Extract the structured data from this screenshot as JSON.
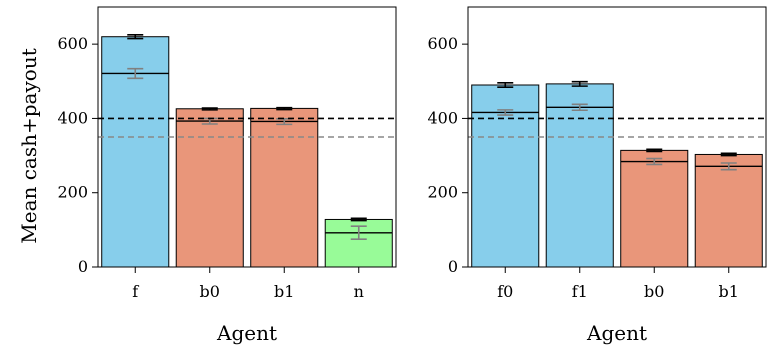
{
  "chart_data": [
    {
      "type": "bar",
      "title": "",
      "xlabel": "Agent",
      "ylabel": "Mean cash+payout",
      "ylim": [
        0,
        700
      ],
      "yticks": [
        0,
        200,
        400,
        600
      ],
      "categories": [
        "f",
        "b0",
        "b1",
        "n"
      ],
      "bar_colors": [
        "#87ceeb",
        "#e9967a",
        "#e9967a",
        "#98fb98"
      ],
      "values": [
        620,
        426,
        427,
        128
      ],
      "error_high": [
        625,
        428,
        429,
        131
      ],
      "error_low": [
        615,
        423,
        424,
        125
      ],
      "inner_values": [
        521,
        393,
        392,
        92
      ],
      "inner_error_high": [
        534,
        400,
        399,
        110
      ],
      "inner_error_low": [
        508,
        385,
        384,
        75
      ],
      "reference_lines": [
        {
          "value": 400,
          "style": "dashed",
          "color": "#000000"
        },
        {
          "value": 350,
          "style": "dashed",
          "color": "#888888"
        }
      ],
      "grid": false
    },
    {
      "type": "bar",
      "title": "",
      "xlabel": "Agent",
      "ylabel": "",
      "ylim": [
        0,
        700
      ],
      "yticks": [
        0,
        200,
        400,
        600
      ],
      "categories": [
        "f0",
        "f1",
        "b0",
        "b1"
      ],
      "bar_colors": [
        "#87ceeb",
        "#87ceeb",
        "#e9967a",
        "#e9967a"
      ],
      "values": [
        490,
        493,
        314,
        303
      ],
      "error_high": [
        496,
        499,
        317,
        306
      ],
      "error_low": [
        484,
        487,
        311,
        300
      ],
      "inner_values": [
        416,
        430,
        284,
        271
      ],
      "inner_error_high": [
        423,
        438,
        292,
        280
      ],
      "inner_error_low": [
        409,
        422,
        276,
        262
      ],
      "reference_lines": [
        {
          "value": 400,
          "style": "dashed",
          "color": "#000000"
        },
        {
          "value": 350,
          "style": "dashed",
          "color": "#888888"
        }
      ],
      "grid": false
    }
  ]
}
